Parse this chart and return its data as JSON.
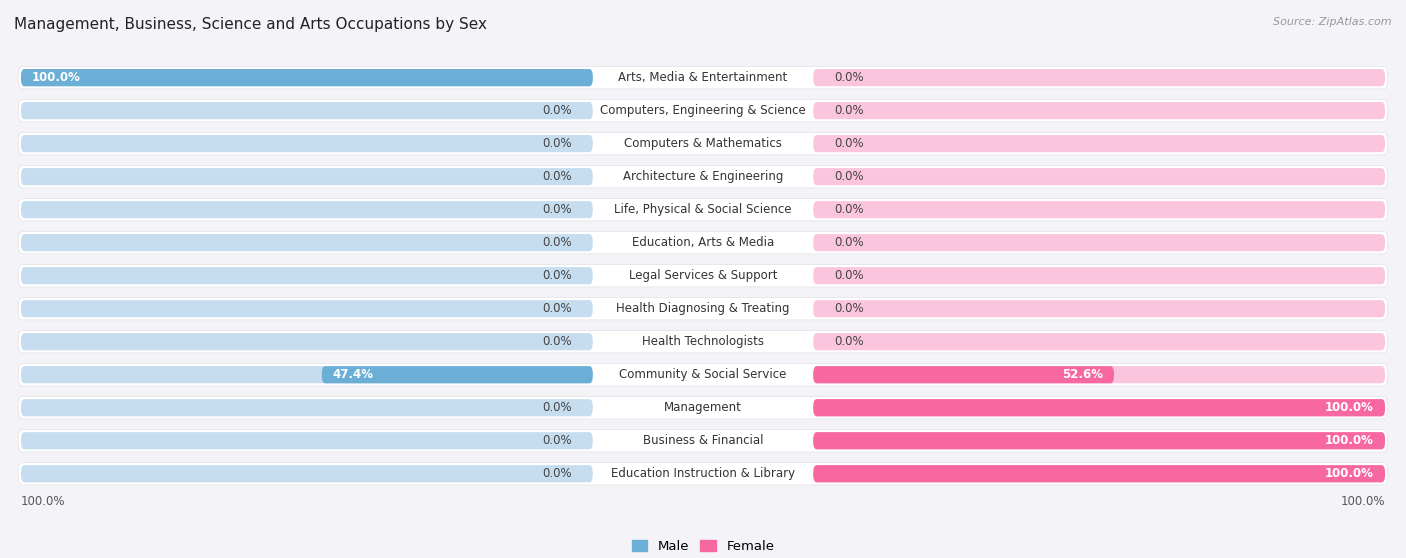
{
  "title": "Management, Business, Science and Arts Occupations by Sex",
  "source": "Source: ZipAtlas.com",
  "categories": [
    "Arts, Media & Entertainment",
    "Computers, Engineering & Science",
    "Computers & Mathematics",
    "Architecture & Engineering",
    "Life, Physical & Social Science",
    "Education, Arts & Media",
    "Legal Services & Support",
    "Health Diagnosing & Treating",
    "Health Technologists",
    "Community & Social Service",
    "Management",
    "Business & Financial",
    "Education Instruction & Library"
  ],
  "male_values": [
    100.0,
    0.0,
    0.0,
    0.0,
    0.0,
    0.0,
    0.0,
    0.0,
    0.0,
    47.4,
    0.0,
    0.0,
    0.0
  ],
  "female_values": [
    0.0,
    0.0,
    0.0,
    0.0,
    0.0,
    0.0,
    0.0,
    0.0,
    0.0,
    52.6,
    100.0,
    100.0,
    100.0
  ],
  "male_color": "#6baed6",
  "female_color": "#f768a1",
  "male_bg_color": "#c6dcef",
  "female_bg_color": "#fcc5de",
  "title_fontsize": 11,
  "label_fontsize": 8.5,
  "value_fontsize": 8.5,
  "legend_fontsize": 9.5
}
